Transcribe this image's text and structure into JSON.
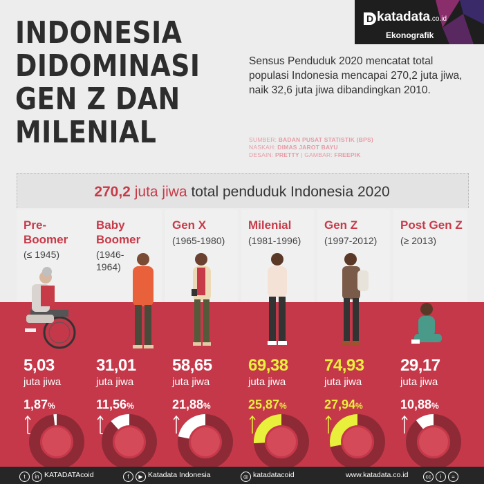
{
  "header": {
    "title": "INDONESIA DIDOMINASI GEN Z DAN MILENIAL",
    "logo": "katadata",
    "logo_suffix": ".co.id",
    "logo_sub": "Ekonografik",
    "intro": "Sensus Penduduk 2020 mencatat total populasi Indonesia mencapai 270,2 juta jiwa, naik 32,6 juta jiwa dibandingkan 2010.",
    "credits": [
      {
        "label": "SUMBER: ",
        "value": "BADAN PUSAT STATISTIK (BPS)"
      },
      {
        "label": "NASKAH: ",
        "value": "DIMAS JAROT BAYU"
      },
      {
        "label": "DESAIN: ",
        "value": "PRETTY",
        "label2": " | GAMBAR: ",
        "value2": "FREEPIK"
      }
    ]
  },
  "banner": {
    "number": "270,2",
    "unit": "juta jiwa",
    "text": "total penduduk Indonesia 2020"
  },
  "colors": {
    "red": "#c5384a",
    "highlight": "#e9f03c",
    "donut_ring": "#8e2a36",
    "donut_inner": "#d44a58"
  },
  "chart_data": {
    "type": "pie",
    "categories": [
      "Pre-Boomer",
      "Baby Boomer",
      "Gen X",
      "Milenial",
      "Gen Z",
      "Post Gen Z"
    ],
    "series": [
      {
        "name": "",
        "values": [
          5.03,
          31.01,
          58.65,
          69.38,
          74.93,
          29.17
        ]
      },
      {
        "name": "",
        "values": [
          1.87,
          11.56,
          21.88,
          25.87,
          27.94,
          10.88
        ]
      }
    ]
  },
  "generations": [
    {
      "name": "Pre-\nBoomer",
      "years": "(≤ 1945)",
      "value": "5,03",
      "unit": "juta jiwa",
      "pct": "1,87",
      "pct_sign": "%",
      "share": 0.0187,
      "highlight": false
    },
    {
      "name": "Baby\nBoomer",
      "years": "(1946-\n1964)",
      "value": "31,01",
      "unit": "juta jiwa",
      "pct": "11,56",
      "pct_sign": "%",
      "share": 0.1156,
      "highlight": false
    },
    {
      "name": "Gen X",
      "years": "(1965-1980)",
      "value": "58,65",
      "unit": "juta jiwa",
      "pct": "21,88",
      "pct_sign": "%",
      "share": 0.2188,
      "highlight": false
    },
    {
      "name": "Milenial",
      "years": "(1981-1996)",
      "value": "69,38",
      "unit": "juta jiwa",
      "pct": "25,87",
      "pct_sign": "%",
      "share": 0.2587,
      "highlight": true
    },
    {
      "name": "Gen Z",
      "years": "(1997-2012)",
      "value": "74,93",
      "unit": "juta jiwa",
      "pct": "27,94",
      "pct_sign": "%",
      "share": 0.2794,
      "highlight": true
    },
    {
      "name": "Post Gen Z",
      "years": "(≥ 2013)",
      "value": "29,17",
      "unit": "juta jiwa",
      "pct": "10,88",
      "pct_sign": "%",
      "share": 0.1088,
      "highlight": false
    }
  ],
  "footer": {
    "handle1": "KATADATAcoid",
    "handle2": "Katadata Indonesia",
    "handle3": "katadatacoid",
    "site": "www.katadata.co.id"
  }
}
